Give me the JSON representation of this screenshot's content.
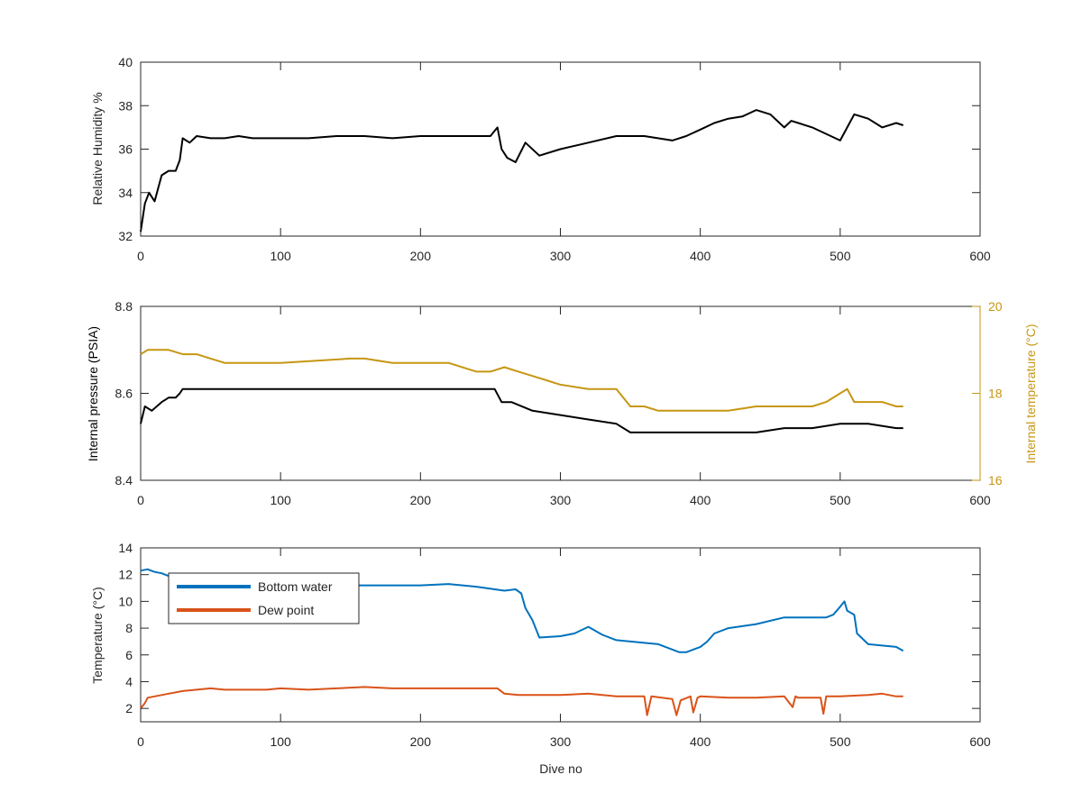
{
  "chart_data": [
    {
      "type": "line",
      "xlabel": "",
      "ylabel": "Relative Humidity %",
      "xlim": [
        0,
        600
      ],
      "ylim": [
        32,
        40
      ],
      "xticks": [
        "0",
        "100",
        "200",
        "300",
        "400",
        "500",
        "600"
      ],
      "yticks": [
        "32",
        "34",
        "36",
        "38",
        "40"
      ],
      "grid": false,
      "series": [
        {
          "color": "#000000",
          "x": [
            0,
            3,
            6,
            10,
            15,
            20,
            25,
            28,
            30,
            35,
            40,
            50,
            60,
            70,
            80,
            90,
            100,
            120,
            140,
            160,
            180,
            200,
            220,
            240,
            250,
            255,
            258,
            262,
            268,
            275,
            285,
            300,
            320,
            340,
            360,
            380,
            390,
            400,
            410,
            420,
            430,
            440,
            450,
            460,
            465,
            470,
            480,
            490,
            500,
            505,
            510,
            520,
            530,
            540,
            545
          ],
          "y": [
            32.2,
            33.5,
            34.0,
            33.6,
            34.8,
            35.0,
            35.0,
            35.5,
            36.5,
            36.3,
            36.6,
            36.5,
            36.5,
            36.6,
            36.5,
            36.5,
            36.5,
            36.5,
            36.6,
            36.6,
            36.5,
            36.6,
            36.6,
            36.6,
            36.6,
            37.0,
            36.0,
            35.6,
            35.4,
            36.3,
            35.7,
            36.0,
            36.3,
            36.6,
            36.6,
            36.4,
            36.6,
            36.9,
            37.2,
            37.4,
            37.5,
            37.8,
            37.6,
            37.0,
            37.3,
            37.2,
            37.0,
            36.7,
            36.4,
            37.0,
            37.6,
            37.4,
            37.0,
            37.2,
            37.1
          ]
        }
      ]
    },
    {
      "type": "line",
      "xlabel": "",
      "ylabel": "Internal pressure (PSIA)",
      "y2label": "Internal temperature (°C)",
      "xlim": [
        0,
        600
      ],
      "ylim": [
        8.4,
        8.8
      ],
      "y2lim": [
        16,
        20
      ],
      "xticks": [
        "0",
        "100",
        "200",
        "300",
        "400",
        "500",
        "600"
      ],
      "yticks": [
        "8.4",
        "8.6",
        "8.8"
      ],
      "y2ticks": [
        "16",
        "18",
        "20"
      ],
      "grid": false,
      "series": [
        {
          "axis": "left",
          "color": "#000000",
          "x": [
            0,
            3,
            8,
            15,
            20,
            25,
            28,
            30,
            50,
            100,
            150,
            200,
            230,
            250,
            253,
            258,
            265,
            280,
            300,
            320,
            340,
            350,
            380,
            400,
            420,
            440,
            460,
            480,
            500,
            520,
            540,
            545
          ],
          "y": [
            8.53,
            8.57,
            8.56,
            8.58,
            8.59,
            8.59,
            8.6,
            8.61,
            8.61,
            8.61,
            8.61,
            8.61,
            8.61,
            8.61,
            8.61,
            8.58,
            8.58,
            8.56,
            8.55,
            8.54,
            8.53,
            8.51,
            8.51,
            8.51,
            8.51,
            8.51,
            8.52,
            8.52,
            8.53,
            8.53,
            8.52,
            8.52
          ]
        },
        {
          "axis": "right",
          "color": "#C69612",
          "x": [
            0,
            5,
            10,
            20,
            30,
            40,
            50,
            60,
            70,
            100,
            150,
            160,
            180,
            200,
            220,
            240,
            250,
            260,
            270,
            280,
            290,
            300,
            320,
            340,
            350,
            360,
            370,
            380,
            390,
            400,
            420,
            440,
            460,
            480,
            490,
            500,
            505,
            510,
            520,
            530,
            540,
            545
          ],
          "y": [
            18.9,
            19.0,
            19.0,
            19.0,
            18.9,
            18.9,
            18.8,
            18.7,
            18.7,
            18.7,
            18.8,
            18.8,
            18.7,
            18.7,
            18.7,
            18.5,
            18.5,
            18.6,
            18.5,
            18.4,
            18.3,
            18.2,
            18.1,
            18.1,
            17.7,
            17.7,
            17.6,
            17.6,
            17.6,
            17.6,
            17.6,
            17.7,
            17.7,
            17.7,
            17.8,
            18.0,
            18.1,
            17.8,
            17.8,
            17.8,
            17.7,
            17.7
          ]
        }
      ]
    },
    {
      "type": "line",
      "xlabel": "Dive no",
      "ylabel": "Temperature (°C)",
      "xlim": [
        0,
        600
      ],
      "ylim": [
        1,
        14
      ],
      "xticks": [
        "0",
        "100",
        "200",
        "300",
        "400",
        "500",
        "600"
      ],
      "yticks": [
        "2",
        "4",
        "6",
        "8",
        "10",
        "12",
        "14"
      ],
      "grid": false,
      "legend": "top-left",
      "series": [
        {
          "name": "Bottom water",
          "color": "#0072BD",
          "x": [
            0,
            5,
            10,
            15,
            20,
            30,
            50,
            100,
            150,
            200,
            220,
            240,
            260,
            268,
            272,
            275,
            280,
            285,
            300,
            310,
            320,
            330,
            340,
            350,
            360,
            370,
            380,
            385,
            390,
            400,
            405,
            410,
            420,
            440,
            460,
            480,
            490,
            495,
            500,
            503,
            505,
            510,
            512,
            520,
            530,
            540,
            545
          ],
          "y": [
            12.3,
            12.4,
            12.2,
            12.1,
            11.9,
            11.7,
            11.5,
            11.3,
            11.2,
            11.2,
            11.3,
            11.1,
            10.8,
            10.9,
            10.6,
            9.5,
            8.6,
            7.3,
            7.4,
            7.6,
            8.1,
            7.5,
            7.1,
            7.0,
            6.9,
            6.8,
            6.4,
            6.2,
            6.2,
            6.6,
            7.0,
            7.6,
            8.0,
            8.3,
            8.8,
            8.8,
            8.8,
            9.0,
            9.6,
            10.0,
            9.3,
            9.0,
            7.6,
            6.8,
            6.7,
            6.6,
            6.3
          ]
        },
        {
          "name": "Dew point",
          "color": "#D95319",
          "x": [
            0,
            3,
            5,
            10,
            20,
            30,
            40,
            50,
            60,
            70,
            80,
            90,
            100,
            120,
            140,
            160,
            180,
            200,
            220,
            240,
            255,
            260,
            270,
            280,
            290,
            300,
            320,
            340,
            360,
            362,
            365,
            380,
            383,
            386,
            393,
            395,
            398,
            400,
            420,
            440,
            460,
            466,
            468,
            470,
            480,
            486,
            488,
            490,
            500,
            520,
            530,
            540,
            545
          ],
          "y": [
            2.0,
            2.4,
            2.8,
            2.9,
            3.1,
            3.3,
            3.4,
            3.5,
            3.4,
            3.4,
            3.4,
            3.4,
            3.5,
            3.4,
            3.5,
            3.6,
            3.5,
            3.5,
            3.5,
            3.5,
            3.5,
            3.1,
            3.0,
            3.0,
            3.0,
            3.0,
            3.1,
            2.9,
            2.9,
            1.5,
            2.9,
            2.7,
            1.5,
            2.6,
            2.9,
            1.7,
            2.8,
            2.9,
            2.8,
            2.8,
            2.9,
            2.1,
            2.9,
            2.8,
            2.8,
            2.8,
            1.6,
            2.9,
            2.9,
            3.0,
            3.1,
            2.9,
            2.9
          ]
        }
      ]
    }
  ]
}
